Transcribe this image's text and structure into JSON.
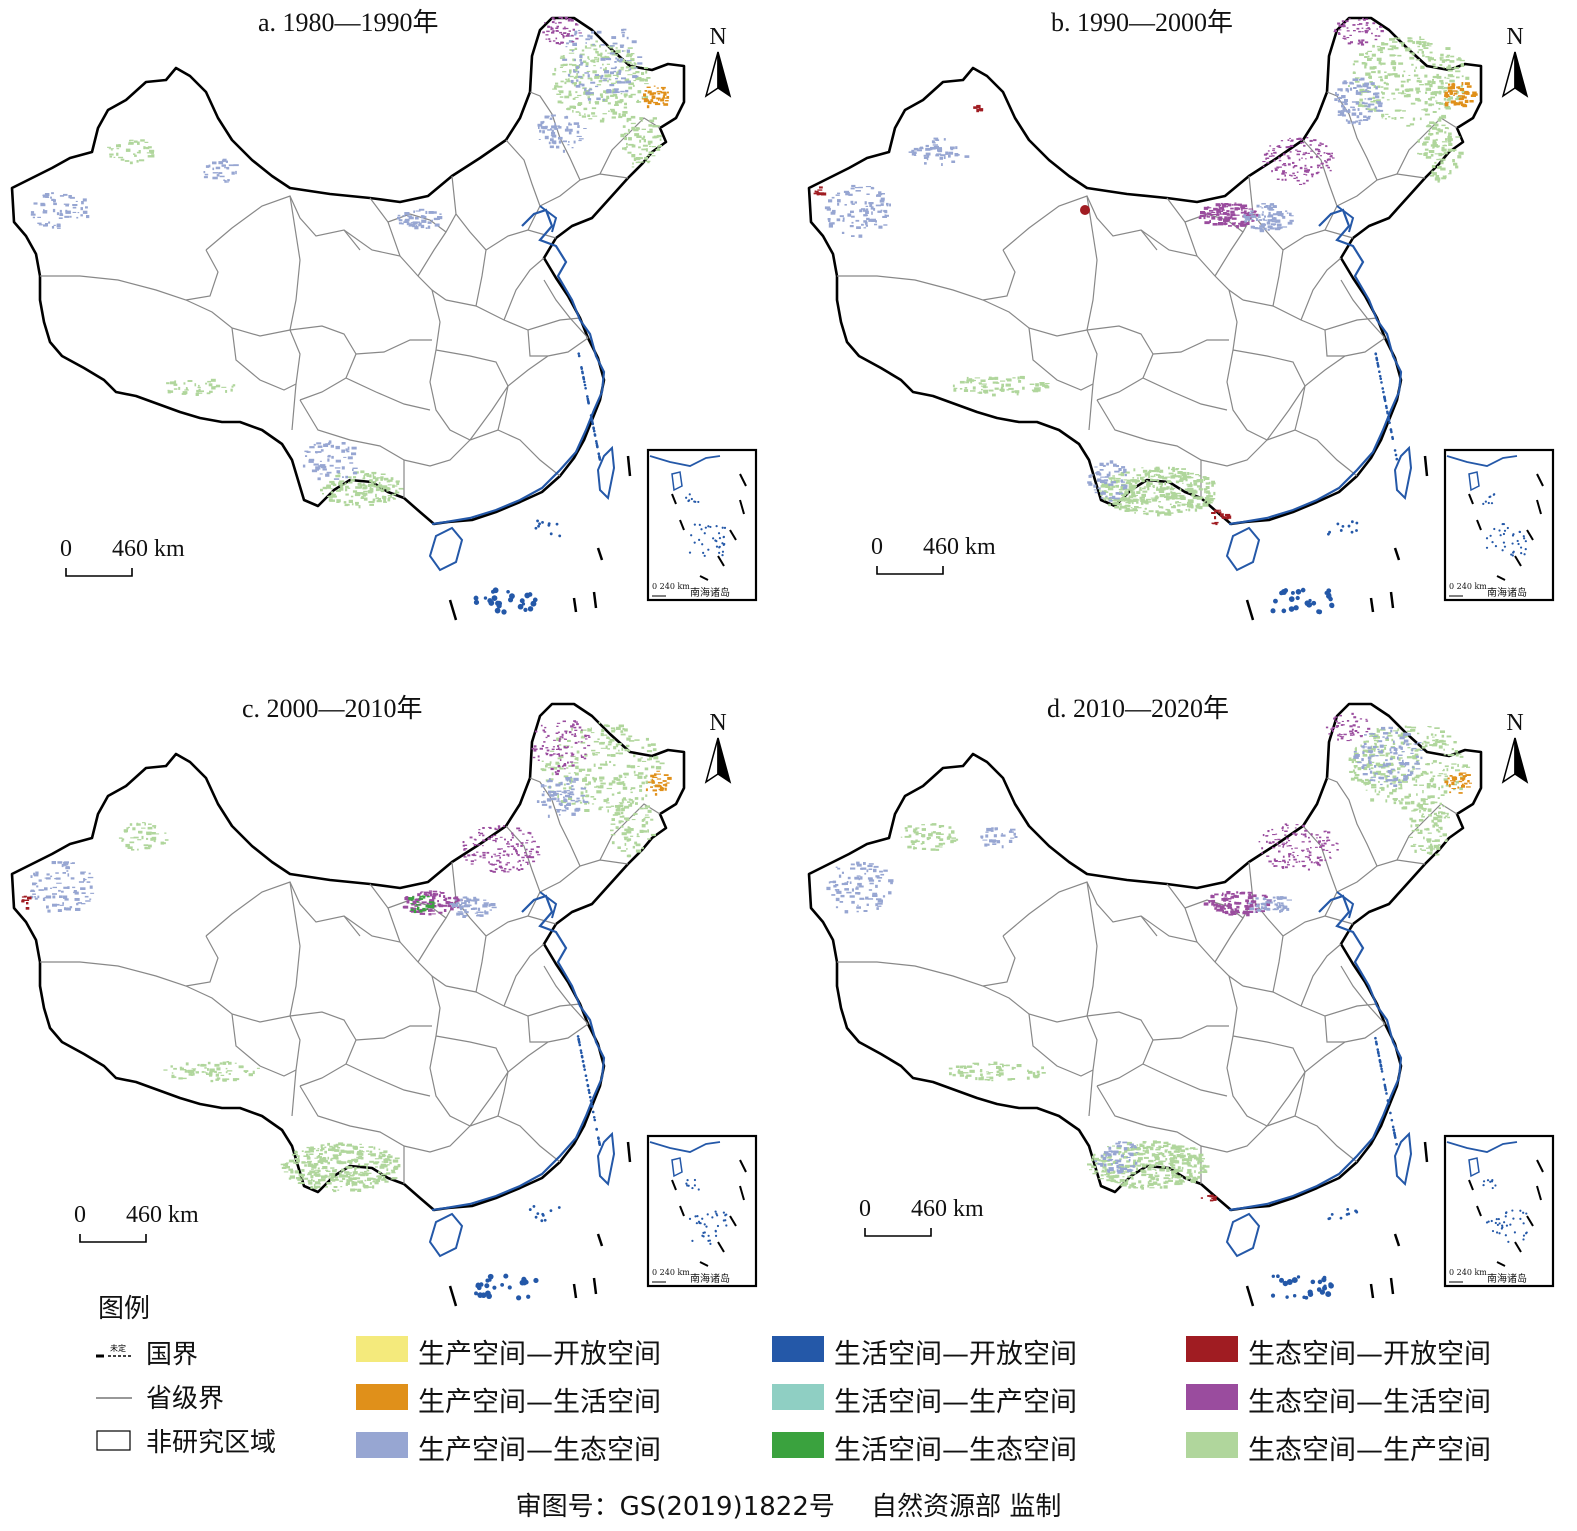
{
  "panels": [
    {
      "id": "a",
      "title": "a. 1980—1990年",
      "scale_zero": "0",
      "scale_label": "460 km"
    },
    {
      "id": "b",
      "title": "b. 1990—2000年",
      "scale_zero": "0",
      "scale_label": "460 km"
    },
    {
      "id": "c",
      "title": "c. 2000—2010年",
      "scale_zero": "0",
      "scale_label": "460 km"
    },
    {
      "id": "d",
      "title": "d. 2010—2020年",
      "scale_zero": "0",
      "scale_label": "460 km"
    }
  ],
  "north_label": "N",
  "inset": {
    "label": "南海诸岛",
    "scale": "0  240 km"
  },
  "legend": {
    "title": "图例",
    "undetermined_label": "未定",
    "boundaries": [
      {
        "label": "国界",
        "symbol": "national-border"
      },
      {
        "label": "省级界",
        "symbol": "provincial-border"
      },
      {
        "label": "非研究区域",
        "symbol": "non-study-area"
      }
    ],
    "classes": [
      {
        "label": "生产空间—开放空间",
        "color": "#f4ea7c"
      },
      {
        "label": "生产空间—生活空间",
        "color": "#e0901a"
      },
      {
        "label": "生产空间—生态空间",
        "color": "#97a6d2"
      },
      {
        "label": "生活空间—开放空间",
        "color": "#2458a8"
      },
      {
        "label": "生活空间—生产空间",
        "color": "#8fcfc3"
      },
      {
        "label": "生活空间—生态空间",
        "color": "#3aa23e"
      },
      {
        "label": "生态空间—开放空间",
        "color": "#a01c22"
      },
      {
        "label": "生态空间—生活空间",
        "color": "#9a4c9e"
      },
      {
        "label": "生态空间—生产空间",
        "color": "#b0d69c"
      }
    ]
  },
  "footer": {
    "review_no": "审图号：GS(2019)1822号",
    "supervisor": "自然资源部  监制"
  }
}
